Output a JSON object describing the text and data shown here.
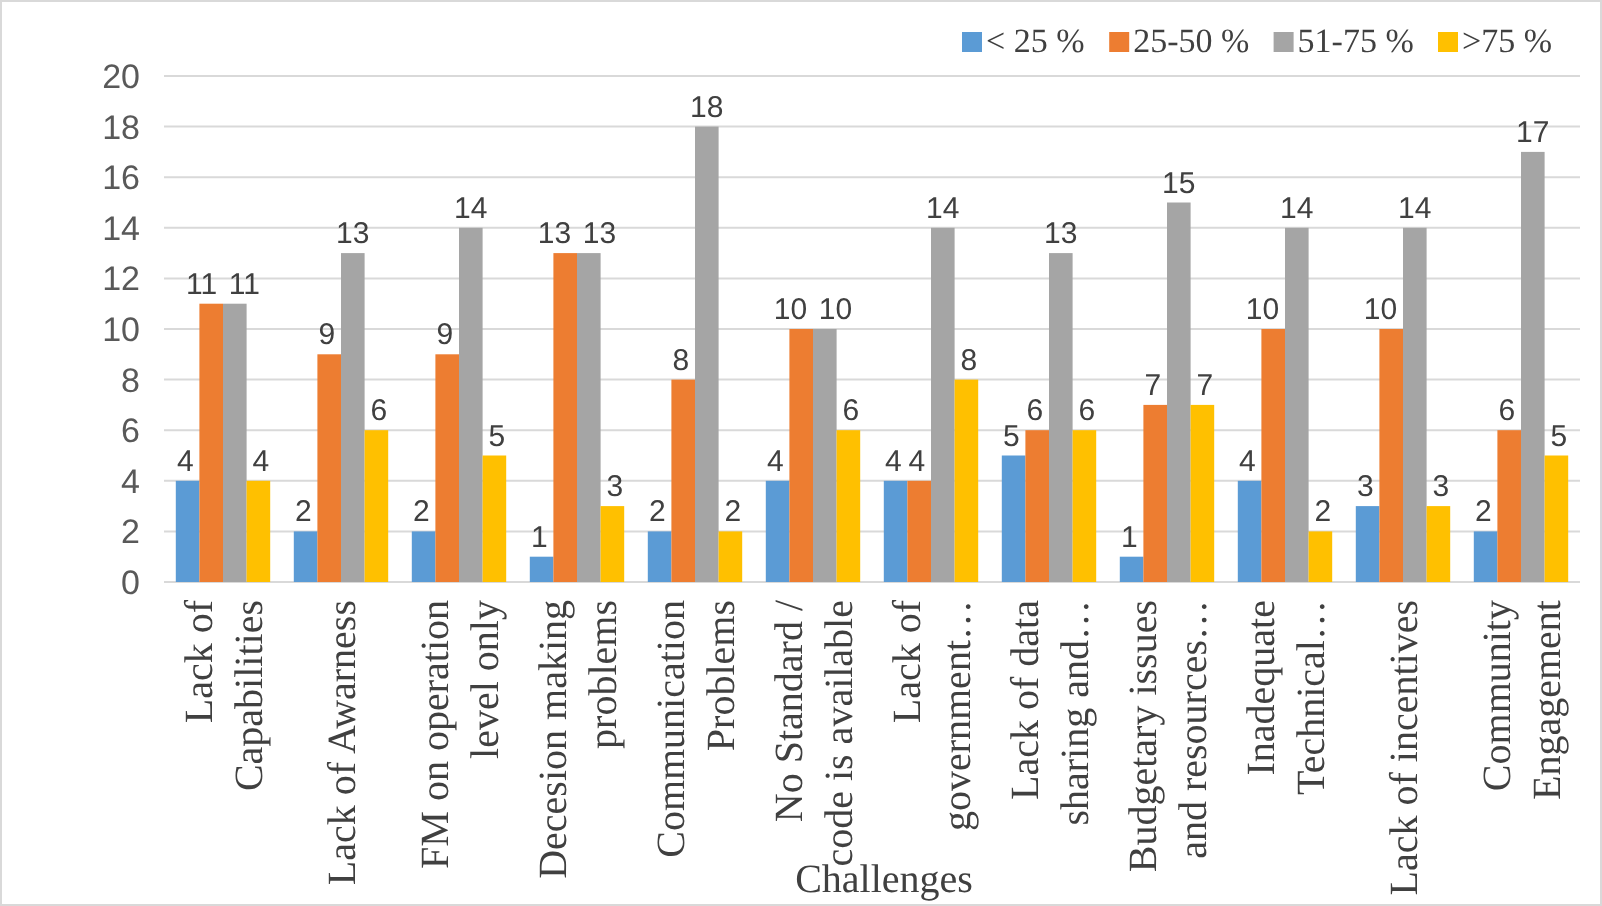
{
  "chart_data": {
    "type": "bar",
    "xlabel": "Challenges",
    "categories": [
      "Lack of\nCapabilities",
      "Lack of Awarness",
      "FM on operation\nlevel only",
      "Decesion making\nproblems",
      "Communication\nProblems",
      "No Standard /\ncode is available",
      "Lack of\ngovernment…",
      "Lack of data\nsharing and…",
      "Budgetary issues\nand resources…",
      "Inadequate\nTechnical…",
      "Lack of incentives",
      "Community\nEngagement"
    ],
    "series": [
      {
        "name": "< 25 %",
        "color": "#5b9bd5",
        "values": [
          4,
          2,
          2,
          1,
          2,
          4,
          4,
          5,
          1,
          4,
          3,
          2
        ]
      },
      {
        "name": "25-50 %",
        "color": "#ed7d31",
        "values": [
          11,
          9,
          9,
          13,
          8,
          10,
          4,
          6,
          7,
          10,
          10,
          6
        ]
      },
      {
        "name": "51-75 %",
        "color": "#a5a5a5",
        "values": [
          11,
          13,
          14,
          13,
          18,
          10,
          14,
          13,
          15,
          14,
          14,
          17
        ]
      },
      {
        "name": ">75 %",
        "color": "#ffc000",
        "values": [
          4,
          6,
          5,
          3,
          2,
          6,
          8,
          6,
          7,
          2,
          3,
          5
        ]
      }
    ],
    "ylim": [
      0,
      20
    ],
    "yticks": [
      0,
      2,
      4,
      6,
      8,
      10,
      12,
      14,
      16,
      18,
      20
    ],
    "grid": "y",
    "legend": "top right",
    "data_labels": true
  }
}
